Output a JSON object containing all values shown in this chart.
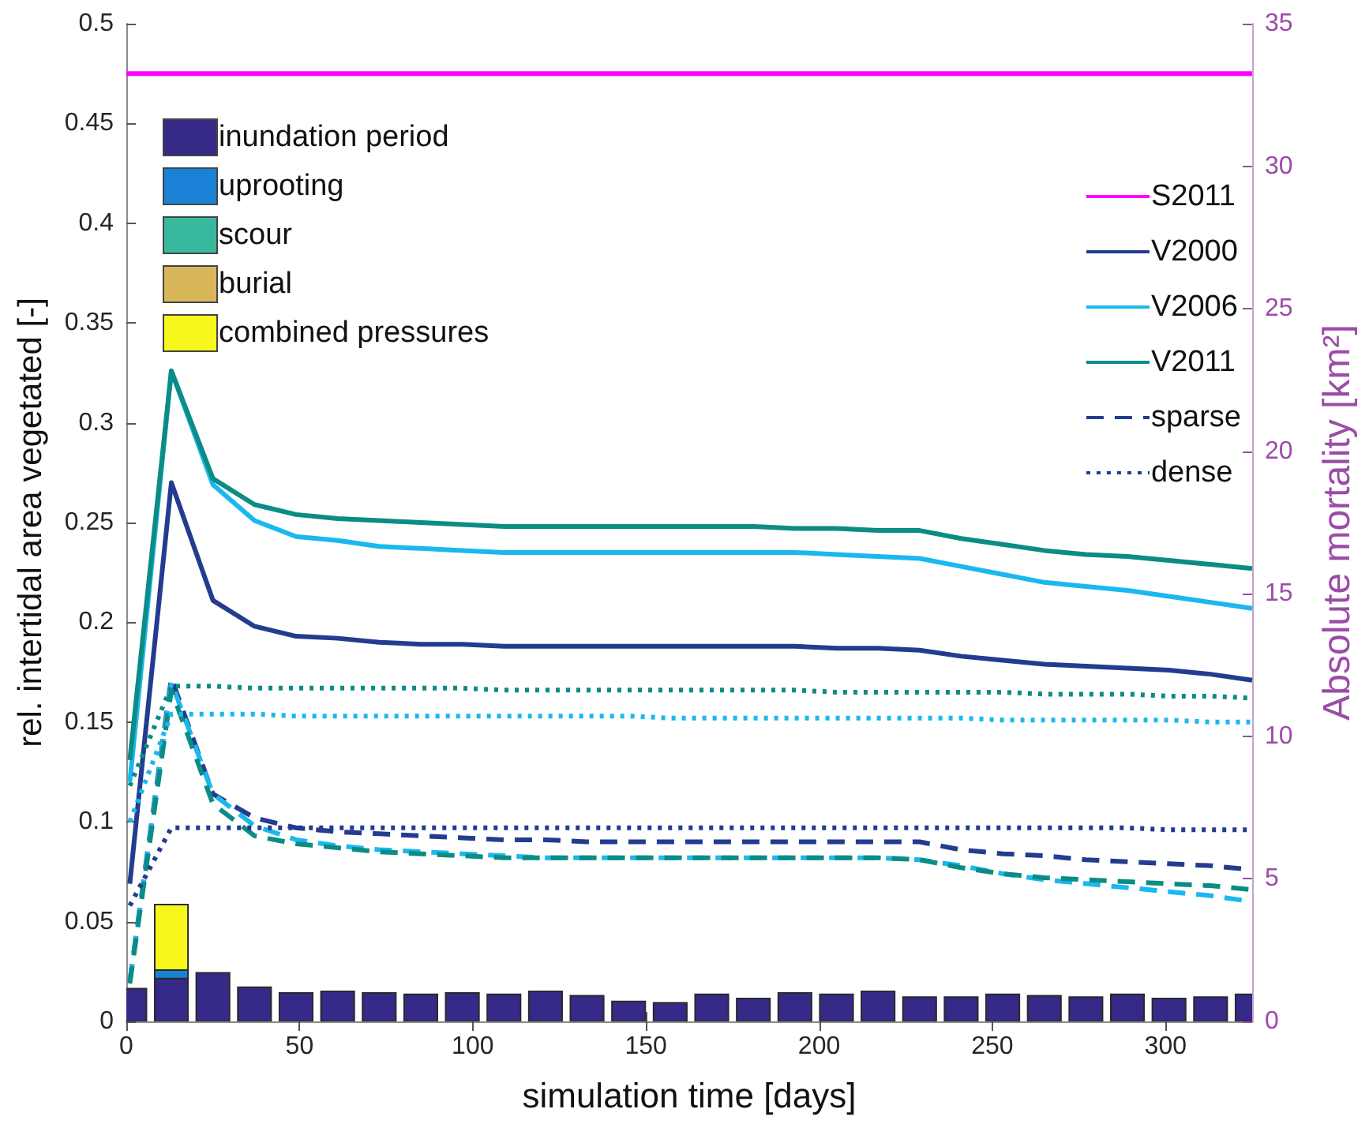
{
  "chart_data": {
    "type": "line",
    "xlabel": "simulation time [days]",
    "ylabel": "rel. intertidal area vegetated [-]",
    "y2label": "Absolute mortality [km²]",
    "x": [
      1,
      13,
      25,
      37,
      49,
      61,
      73,
      85,
      97,
      109,
      121,
      133,
      145,
      157,
      169,
      181,
      193,
      205,
      217,
      229,
      241,
      253,
      265,
      277,
      289,
      301,
      313,
      325
    ],
    "xlim": [
      0,
      325
    ],
    "xticks": [
      0,
      50,
      100,
      150,
      200,
      250,
      300
    ],
    "ylim": [
      0,
      0.5
    ],
    "yticks": [
      0,
      0.05,
      0.1,
      0.15,
      0.2,
      0.25,
      0.3,
      0.35,
      0.4,
      0.45,
      0.5
    ],
    "y2lim": [
      0,
      35
    ],
    "y2ticks": [
      0,
      5,
      10,
      15,
      20,
      25,
      30,
      35
    ],
    "grid": false,
    "legend": "top left",
    "marker": "none",
    "stacked": true,
    "series": [
      {
        "type": "bar",
        "axis": "y2",
        "name": "inundation period",
        "color": "#352a87",
        "values": [
          1.15,
          1.5,
          1.7,
          1.2,
          1.0,
          1.05,
          1.0,
          0.95,
          1.0,
          0.95,
          1.05,
          0.9,
          0.7,
          0.65,
          0.95,
          0.8,
          1.0,
          0.95,
          1.05,
          0.85,
          0.85,
          0.95,
          0.9,
          0.85,
          0.95,
          0.8,
          0.85,
          0.95
        ]
      },
      {
        "type": "bar",
        "axis": "y2",
        "name": "uprooting",
        "color": "#1a82d6",
        "values": [
          null,
          0.3,
          null,
          null,
          null,
          null,
          null,
          null,
          null,
          null,
          null,
          null,
          null,
          null,
          null,
          null,
          null,
          null,
          null,
          null,
          null,
          null,
          null,
          null,
          null,
          null,
          null,
          null
        ]
      },
      {
        "type": "bar",
        "axis": "y2",
        "name": "scour",
        "color": "#38b99e",
        "values": [
          null,
          null,
          null,
          null,
          null,
          null,
          null,
          null,
          null,
          null,
          null,
          null,
          null,
          null,
          null,
          null,
          null,
          null,
          null,
          null,
          null,
          null,
          null,
          null,
          null,
          null,
          null,
          null
        ]
      },
      {
        "type": "bar",
        "axis": "y2",
        "name": "burial",
        "color": "#d8b75a",
        "values": [
          null,
          null,
          null,
          null,
          null,
          null,
          null,
          null,
          null,
          null,
          null,
          null,
          null,
          null,
          null,
          null,
          null,
          null,
          null,
          null,
          null,
          null,
          null,
          null,
          null,
          null,
          null,
          null
        ]
      },
      {
        "type": "bar",
        "axis": "y2",
        "name": "combined pressures",
        "color": "#f7f71c",
        "values": [
          null,
          2.3,
          null,
          null,
          null,
          null,
          null,
          null,
          null,
          null,
          null,
          null,
          null,
          null,
          null,
          null,
          null,
          null,
          null,
          null,
          null,
          null,
          null,
          null,
          null,
          null,
          null,
          null
        ]
      },
      {
        "name": "S2011",
        "color": "#ff00ff",
        "line_style": "solid",
        "x": [
          0,
          325
        ],
        "values": [
          0.475,
          0.475
        ]
      },
      {
        "name": "V2000",
        "color": "#233c8f",
        "line_style": "solid",
        "values": [
          0.069,
          0.27,
          0.211,
          0.198,
          0.193,
          0.192,
          0.19,
          0.189,
          0.189,
          0.188,
          0.188,
          0.188,
          0.188,
          0.188,
          0.188,
          0.188,
          0.188,
          0.187,
          0.187,
          0.186,
          0.183,
          0.181,
          0.179,
          0.178,
          0.177,
          0.176,
          0.174,
          0.171
        ]
      },
      {
        "name": "V2006",
        "color": "#1ab8ef",
        "line_style": "solid",
        "values": [
          0.12,
          0.326,
          0.269,
          0.251,
          0.243,
          0.241,
          0.238,
          0.237,
          0.236,
          0.235,
          0.235,
          0.235,
          0.235,
          0.235,
          0.235,
          0.235,
          0.235,
          0.234,
          0.233,
          0.232,
          0.228,
          0.224,
          0.22,
          0.218,
          0.216,
          0.213,
          0.21,
          0.207
        ]
      },
      {
        "name": "V2011",
        "color": "#0b8c85",
        "line_style": "solid",
        "values": [
          0.131,
          0.326,
          0.272,
          0.259,
          0.254,
          0.252,
          0.251,
          0.25,
          0.249,
          0.248,
          0.248,
          0.248,
          0.248,
          0.248,
          0.248,
          0.248,
          0.247,
          0.247,
          0.246,
          0.246,
          0.242,
          0.239,
          0.236,
          0.234,
          0.233,
          0.231,
          0.229,
          0.227
        ]
      },
      {
        "name": "sparse",
        "color": "#233c8f",
        "line_style": "dashed",
        "values": [
          0.02,
          0.172,
          0.114,
          0.102,
          0.097,
          0.095,
          0.094,
          0.093,
          0.092,
          0.091,
          0.091,
          0.09,
          0.09,
          0.09,
          0.09,
          0.09,
          0.09,
          0.09,
          0.09,
          0.09,
          0.086,
          0.084,
          0.083,
          0.081,
          0.08,
          0.079,
          0.078,
          0.076
        ]
      },
      {
        "color": "#1ab8ef",
        "line_style": "dashed",
        "values": [
          0.02,
          0.17,
          0.114,
          0.098,
          0.091,
          0.088,
          0.086,
          0.085,
          0.084,
          0.083,
          0.082,
          0.082,
          0.082,
          0.082,
          0.082,
          0.082,
          0.082,
          0.082,
          0.082,
          0.081,
          0.078,
          0.074,
          0.071,
          0.069,
          0.067,
          0.065,
          0.063,
          0.06
        ]
      },
      {
        "color": "#0b8c85",
        "line_style": "dashed",
        "values": [
          0.019,
          0.166,
          0.109,
          0.093,
          0.089,
          0.087,
          0.085,
          0.084,
          0.083,
          0.082,
          0.082,
          0.082,
          0.082,
          0.082,
          0.082,
          0.082,
          0.082,
          0.082,
          0.082,
          0.081,
          0.077,
          0.074,
          0.072,
          0.071,
          0.07,
          0.069,
          0.068,
          0.066
        ]
      },
      {
        "name": "dense",
        "color": "#233c8f",
        "line_style": "dotted",
        "values": [
          0.058,
          0.097,
          0.097,
          0.097,
          0.097,
          0.097,
          0.097,
          0.097,
          0.097,
          0.097,
          0.097,
          0.097,
          0.097,
          0.097,
          0.097,
          0.097,
          0.097,
          0.097,
          0.097,
          0.097,
          0.097,
          0.097,
          0.097,
          0.097,
          0.097,
          0.096,
          0.096,
          0.096
        ]
      },
      {
        "color": "#1ab8ef",
        "line_style": "dotted",
        "values": [
          0.1,
          0.154,
          0.154,
          0.154,
          0.153,
          0.153,
          0.153,
          0.153,
          0.153,
          0.153,
          0.153,
          0.153,
          0.153,
          0.152,
          0.152,
          0.152,
          0.152,
          0.152,
          0.152,
          0.152,
          0.152,
          0.151,
          0.151,
          0.151,
          0.151,
          0.151,
          0.15,
          0.15
        ]
      },
      {
        "color": "#0b8c85",
        "line_style": "dotted",
        "values": [
          0.118,
          0.168,
          0.168,
          0.167,
          0.167,
          0.167,
          0.167,
          0.167,
          0.167,
          0.166,
          0.166,
          0.166,
          0.166,
          0.166,
          0.166,
          0.166,
          0.166,
          0.165,
          0.165,
          0.165,
          0.165,
          0.165,
          0.164,
          0.164,
          0.164,
          0.163,
          0.163,
          0.162
        ]
      }
    ]
  }
}
